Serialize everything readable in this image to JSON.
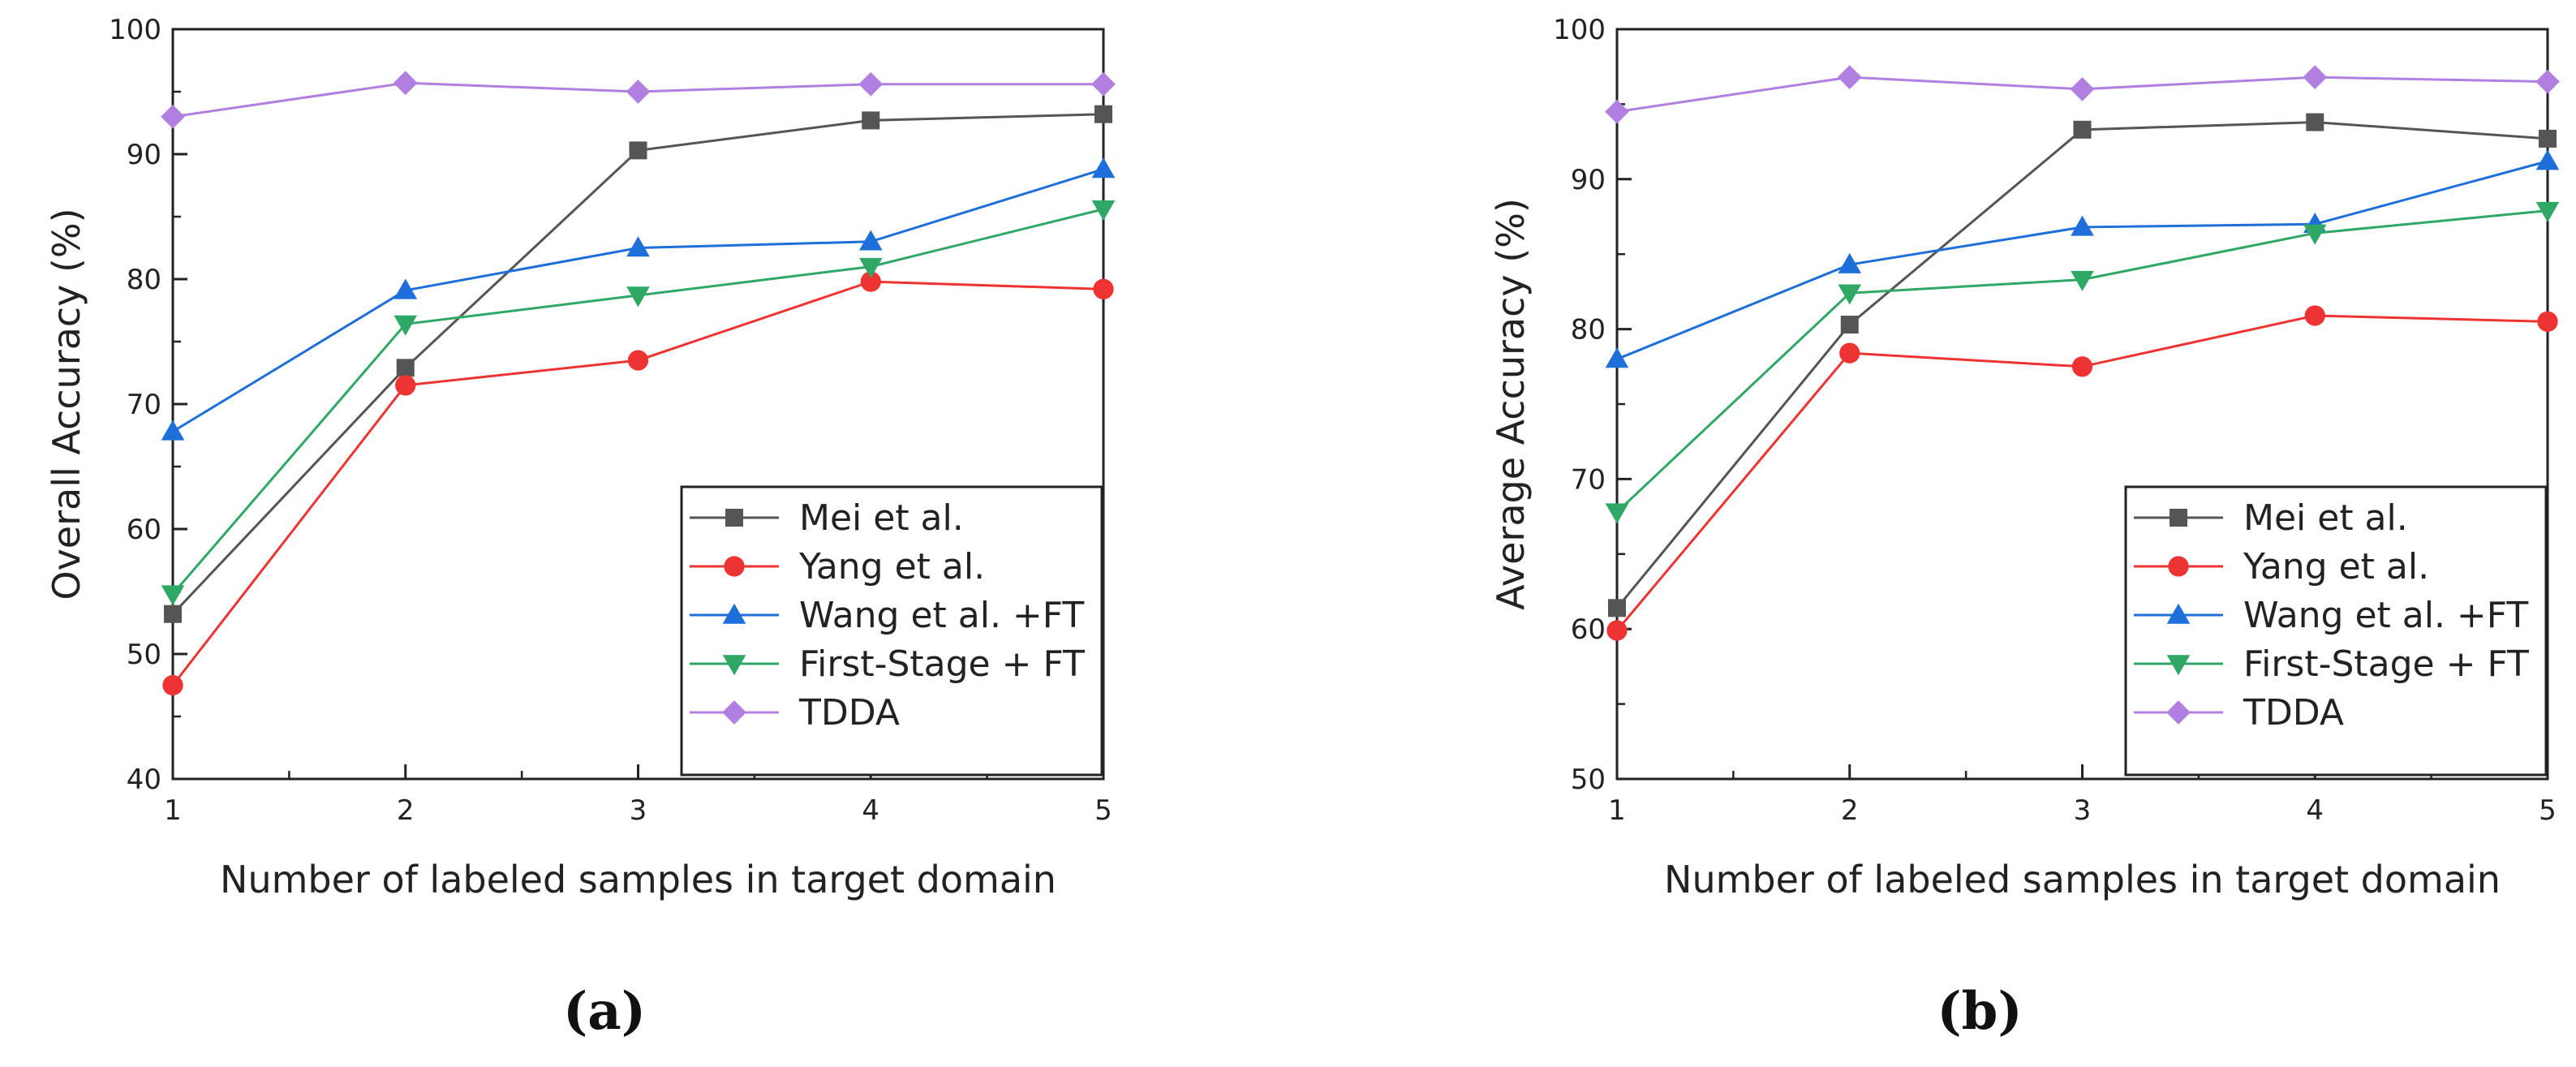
{
  "chart_data": [
    {
      "type": "line",
      "panel_label": "(a)",
      "xlabel": "Number of labeled samples in target domain",
      "ylabel": "Overall Accuracy (%)",
      "x": [
        1,
        2,
        3,
        4,
        5
      ],
      "xlim": [
        1,
        5
      ],
      "ylim": [
        40,
        100
      ],
      "yticks": [
        40,
        50,
        60,
        70,
        80,
        90,
        100
      ],
      "xticks": [
        1,
        2,
        3,
        4,
        5
      ],
      "grid": false,
      "legend_position": "bottom-right",
      "series": [
        {
          "name": "Mei et al.",
          "color": "#555555",
          "marker": "square",
          "values": [
            53.2,
            72.9,
            90.3,
            92.7,
            93.2
          ]
        },
        {
          "name": "Yang et al.",
          "color": "#ee3333",
          "marker": "circle",
          "values": [
            47.5,
            71.5,
            73.5,
            79.8,
            79.2
          ]
        },
        {
          "name": "Wang et al. +FT",
          "color": "#1e6fd9",
          "marker": "triangle-up",
          "values": [
            67.8,
            79.1,
            82.5,
            83.0,
            88.8
          ]
        },
        {
          "name": "First-Stage + FT",
          "color": "#2fa866",
          "marker": "triangle-down",
          "values": [
            54.8,
            76.4,
            78.7,
            81.0,
            85.6
          ]
        },
        {
          "name": "TDDA",
          "color": "#b07fe0",
          "marker": "diamond",
          "values": [
            93.0,
            95.7,
            95.0,
            95.6,
            95.6
          ]
        }
      ]
    },
    {
      "type": "line",
      "panel_label": "(b)",
      "xlabel": "Number of labeled samples in target domain",
      "ylabel": "Average Accuracy (%)",
      "x": [
        1,
        2,
        3,
        4,
        5
      ],
      "xlim": [
        1,
        5
      ],
      "ylim": [
        50,
        100
      ],
      "yticks": [
        50,
        60,
        70,
        80,
        90,
        100
      ],
      "xticks": [
        1,
        2,
        3,
        4,
        5
      ],
      "grid": false,
      "legend_position": "bottom-right",
      "series": [
        {
          "name": "Mei et al.",
          "color": "#555555",
          "marker": "square",
          "values": [
            61.4,
            80.3,
            93.3,
            93.8,
            92.7
          ]
        },
        {
          "name": "Yang et al.",
          "color": "#ee3333",
          "marker": "circle",
          "values": [
            59.9,
            78.4,
            77.5,
            80.9,
            80.5
          ]
        },
        {
          "name": "Wang et al. +FT",
          "color": "#1e6fd9",
          "marker": "triangle-up",
          "values": [
            78.0,
            84.3,
            86.8,
            87.0,
            91.2
          ]
        },
        {
          "name": "First-Stage + FT",
          "color": "#2fa866",
          "marker": "triangle-down",
          "values": [
            67.8,
            82.4,
            83.3,
            86.4,
            87.9
          ]
        },
        {
          "name": "TDDA",
          "color": "#b07fe0",
          "marker": "diamond",
          "values": [
            94.5,
            96.8,
            96.0,
            96.8,
            96.5
          ]
        }
      ]
    }
  ]
}
